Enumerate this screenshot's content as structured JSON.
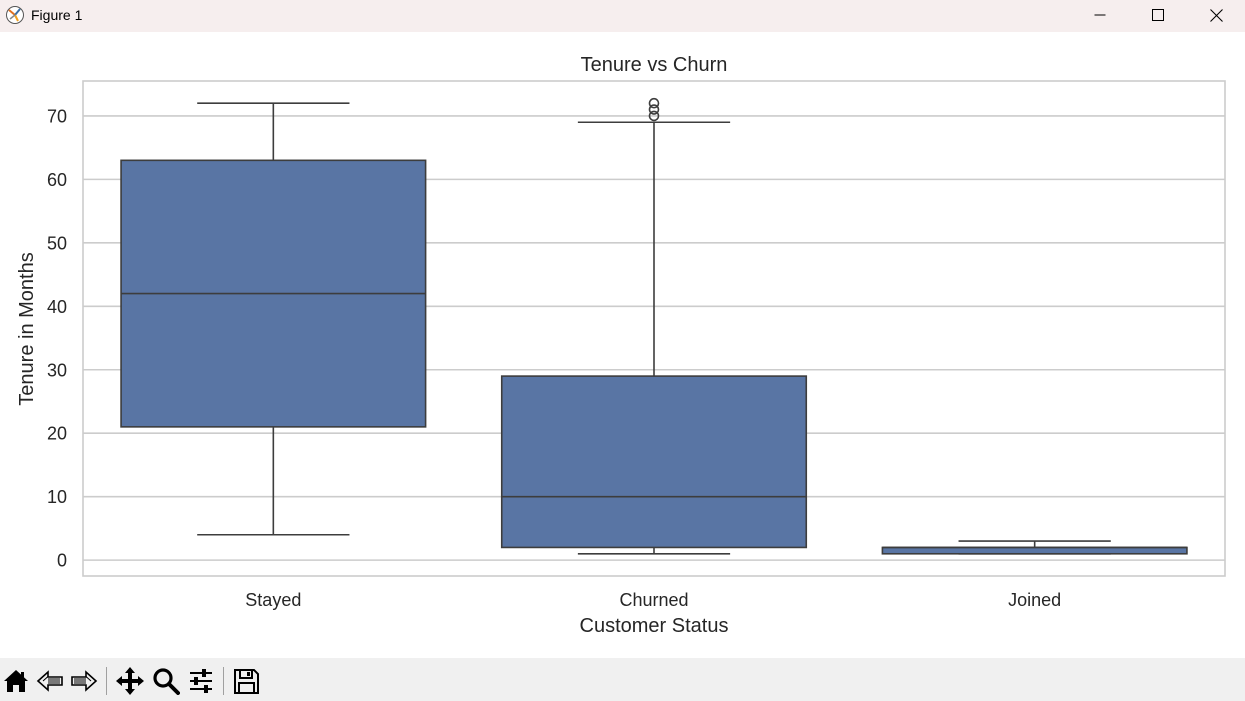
{
  "window": {
    "title": "Figure 1",
    "controls": [
      "minimize",
      "maximize",
      "close"
    ]
  },
  "toolbar": {
    "items": [
      {
        "icon": "home-icon",
        "tooltip": "Reset original view"
      },
      {
        "icon": "back-icon",
        "tooltip": "Back to previous view"
      },
      {
        "icon": "forward-icon",
        "tooltip": "Forward to next view"
      },
      {
        "icon": "move-icon",
        "tooltip": "Pan axes"
      },
      {
        "icon": "zoom-icon",
        "tooltip": "Zoom to rectangle"
      },
      {
        "icon": "configure-subplots-icon",
        "tooltip": "Configure subplots"
      },
      {
        "icon": "save-icon",
        "tooltip": "Save the figure"
      }
    ]
  },
  "colors": {
    "box_fill": "#5975a4",
    "line": "#3d3d3d",
    "grid": "#cccccc",
    "frame": "#cccccc",
    "titlebar": "#f6eeee",
    "toolbar": "#f0f0f0"
  },
  "chart_data": {
    "type": "box",
    "title": "Tenure vs Churn",
    "xlabel": "Customer Status",
    "ylabel": "Tenure in Months",
    "categories": [
      "Stayed",
      "Churned",
      "Joined"
    ],
    "yticks": [
      0,
      10,
      20,
      30,
      40,
      50,
      60,
      70
    ],
    "ylim": [
      -2.5,
      75.5
    ],
    "grid": true,
    "boxes": [
      {
        "category": "Stayed",
        "whisker_low": 4,
        "q1": 21,
        "median": 42,
        "q3": 63,
        "whisker_high": 72,
        "outliers": []
      },
      {
        "category": "Churned",
        "whisker_low": 1,
        "q1": 2,
        "median": 10,
        "q3": 29,
        "whisker_high": 69,
        "outliers": [
          70,
          71,
          72
        ]
      },
      {
        "category": "Joined",
        "whisker_low": 1,
        "q1": 1,
        "median": 2,
        "q3": 2,
        "whisker_high": 3,
        "outliers": []
      }
    ]
  }
}
